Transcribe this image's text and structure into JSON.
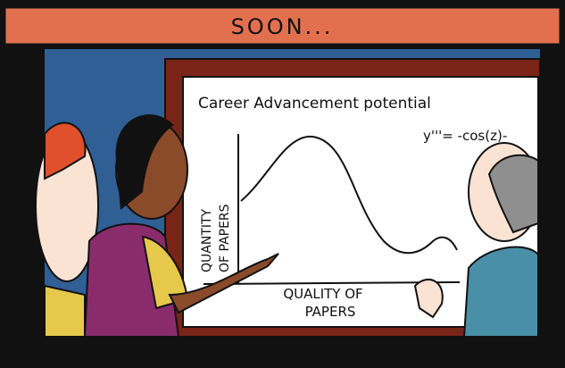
{
  "banner": {
    "text": "SOON..."
  },
  "whiteboard": {
    "title": "Career Advancement potential",
    "y_axis_label": [
      "QUANTITY",
      "OF PAPERS"
    ],
    "x_axis_label": [
      "QUALITY OF",
      "PAPERS"
    ],
    "equation": "y'''= -cos(z)-"
  }
}
